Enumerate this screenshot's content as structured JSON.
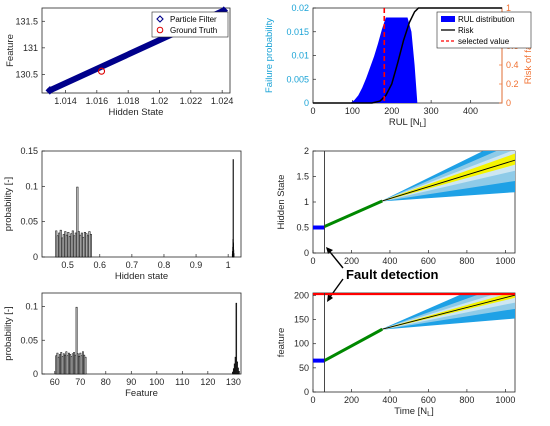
{
  "annotation": "Fault detection",
  "chart_data": [
    {
      "id": "p1",
      "type": "scatter",
      "xlabel": "Hidden State",
      "ylabel": "Feature",
      "xlim": [
        1.0125,
        1.0245
      ],
      "ylim": [
        130.15,
        131.75
      ],
      "xticks": [
        1.014,
        1.016,
        1.018,
        1.02,
        1.022,
        1.024
      ],
      "yticks": [
        130.5,
        131,
        131.5
      ],
      "xtick_labels": [
        "1.014",
        "1.016",
        "1.018",
        "1.02",
        "1.022",
        "1.024"
      ],
      "ytick_labels": [
        "130.5",
        "131",
        "131.5"
      ],
      "legend": [
        "Particle Filter",
        "Ground Truth"
      ],
      "legend_position": "top-right",
      "series": [
        {
          "name": "Particle Filter",
          "line": {
            "x": [
              1.013,
              1.0241
            ],
            "y": [
              130.2,
              131.7
            ]
          },
          "endpoints": [
            [
              1.013,
              130.2
            ],
            [
              1.0241,
              131.7
            ]
          ],
          "color": "#00008b",
          "marker": "diamond"
        },
        {
          "name": "Ground Truth",
          "points": [
            [
              1.0163,
              130.56
            ]
          ],
          "color": "#dd0000",
          "marker": "circle"
        }
      ]
    },
    {
      "id": "p2",
      "type": "area",
      "xlabel": "RUL [N",
      "xlabel_sub": "L",
      "xlabel_end": "]",
      "ylabel": "Failure probability",
      "ylabel_right": "Risk of failure",
      "xlim": [
        0,
        480
      ],
      "ylim": [
        0,
        0.02
      ],
      "ylim_right": [
        0,
        1
      ],
      "xticks": [
        0,
        100,
        200,
        300,
        400
      ],
      "xtick_labels": [
        "0",
        "100",
        "200",
        "300",
        "400"
      ],
      "yticks": [
        0,
        0.005,
        0.01,
        0.015,
        0.02
      ],
      "ytick_labels": [
        "0",
        "0.005",
        "0.01",
        "0.015",
        "0.02"
      ],
      "yticks_right": [
        0,
        0.2,
        0.4,
        0.6,
        0.8,
        1
      ],
      "ytick_labels_right": [
        "0",
        "0.2",
        "0.4",
        "0.6",
        "0.8",
        "1"
      ],
      "legend": [
        "RUL distribution",
        "Risk",
        "selected value"
      ],
      "legend_position": "top-right",
      "distribution": {
        "x": [
          95,
          105,
          115,
          125,
          135,
          145,
          155,
          165,
          175,
          185,
          200,
          220,
          240,
          250,
          258,
          265
        ],
        "y": [
          0,
          0.0006,
          0.0016,
          0.0032,
          0.0052,
          0.0075,
          0.0098,
          0.0125,
          0.0155,
          0.018,
          0.018,
          0.018,
          0.018,
          0.015,
          0.008,
          0
        ]
      },
      "risk": {
        "x": [
          0,
          150,
          170,
          185,
          200,
          215,
          230,
          245,
          258,
          268,
          480
        ],
        "y": [
          0,
          0,
          0.02,
          0.08,
          0.2,
          0.42,
          0.66,
          0.85,
          0.96,
          1,
          1
        ]
      },
      "selected_value": 181,
      "colors": {
        "distribution": "#0000ff",
        "risk": "#000000",
        "selected": "#ff0000",
        "axis_left": "#1aa3d6",
        "axis_right": "#f07030"
      }
    },
    {
      "id": "p3",
      "type": "bar",
      "xlabel": "Hidden state",
      "ylabel": "probability [-]",
      "xlim": [
        0.42,
        1.04
      ],
      "ylim": [
        0,
        0.15
      ],
      "xticks": [
        0.5,
        0.6,
        0.7,
        0.8,
        0.9,
        1
      ],
      "xtick_labels": [
        "0.5",
        "0.6",
        "0.7",
        "0.8",
        "0.9",
        "1"
      ],
      "yticks": [
        0,
        0.05,
        0.1,
        0.15
      ],
      "ytick_labels": [
        "0",
        "0.05",
        "0.1",
        "0.15"
      ],
      "bars_a": {
        "start": 0.462,
        "step": 0.0047,
        "values": [
          0.037,
          0.03,
          0.034,
          0.038,
          0.027,
          0.032,
          0.036,
          0.031,
          0.035,
          0.029,
          0.033,
          0.037,
          0.03,
          0.034,
          0.099,
          0.036,
          0.031,
          0.034,
          0.028,
          0.035,
          0.033,
          0.03,
          0.036,
          0.032
        ]
      },
      "bars_b": {
        "start": 1.0125,
        "step": 0.0006,
        "values": [
          0.004,
          0.008,
          0.014,
          0.025,
          0.138,
          0.02,
          0.01,
          0.005
        ]
      }
    },
    {
      "id": "p4",
      "type": "line",
      "xlabel": "",
      "ylabel": "Hidden State",
      "xlim": [
        0,
        1050
      ],
      "ylim": [
        0,
        2
      ],
      "xticks": [
        0,
        200,
        400,
        600,
        800,
        1000
      ],
      "xtick_labels": [
        "0",
        "200",
        "400",
        "600",
        "800",
        "1000"
      ],
      "yticks": [
        0,
        0.5,
        1,
        1.5,
        2
      ],
      "ytick_labels": [
        "0",
        "0.5",
        "1",
        "1.5",
        "2"
      ],
      "detection_time": 60,
      "early": {
        "x": [
          0,
          60
        ],
        "y": [
          0.5,
          0.5
        ]
      },
      "known": {
        "x": [
          60,
          360
        ],
        "y": [
          0.52,
          1.02
        ]
      },
      "bands": [
        {
          "x": [
            360,
            1050
          ],
          "low": [
            1.02,
            1.2
          ],
          "high": [
            1.02,
            2.3
          ],
          "color": "#1ea1e6"
        },
        {
          "x": [
            360,
            1050
          ],
          "low": [
            1.02,
            1.42
          ],
          "high": [
            1.02,
            2.15
          ],
          "color": "#8fcbe8"
        },
        {
          "x": [
            360,
            1050
          ],
          "low": [
            1.02,
            1.62
          ],
          "high": [
            1.02,
            2.02
          ],
          "color": "#cde6f2"
        },
        {
          "x": [
            360,
            1050
          ],
          "low": [
            1.02,
            1.74
          ],
          "high": [
            1.02,
            1.94
          ],
          "color": "#f4f400"
        }
      ],
      "colors": {
        "early": "#0000ff",
        "known": "#008800",
        "mean": "#000000"
      }
    },
    {
      "id": "p5",
      "type": "bar",
      "xlabel": "Feature",
      "ylabel": "probability [-]",
      "xlim": [
        55,
        133
      ],
      "ylim": [
        0,
        0.12
      ],
      "xticks": [
        60,
        70,
        80,
        90,
        100,
        110,
        120,
        130
      ],
      "xtick_labels": [
        "60",
        "70",
        "80",
        "90",
        "100",
        "110",
        "120",
        "130"
      ],
      "yticks": [
        0,
        0.05,
        0.1
      ],
      "ytick_labels": [
        "0",
        "0.05",
        "0.1"
      ],
      "bars_a": {
        "start": 60.3,
        "step": 0.5,
        "values": [
          0.027,
          0.031,
          0.025,
          0.029,
          0.032,
          0.026,
          0.03,
          0.028,
          0.033,
          0.027,
          0.031,
          0.029,
          0.026,
          0.03,
          0.032,
          0.028,
          0.099,
          0.03,
          0.026,
          0.031,
          0.027,
          0.033,
          0.028,
          0.025
        ]
      },
      "bars_b": {
        "start": 129.6,
        "step": 0.35,
        "values": [
          0.003,
          0.008,
          0.015,
          0.025,
          0.105,
          0.018,
          0.009,
          0.004
        ]
      }
    },
    {
      "id": "p6",
      "type": "line",
      "xlabel": "Time [N",
      "xlabel_sub": "L",
      "xlabel_end": "]",
      "ylabel": "feature",
      "xlim": [
        0,
        1050
      ],
      "ylim": [
        0,
        205
      ],
      "xticks": [
        0,
        200,
        400,
        600,
        800,
        1000
      ],
      "xtick_labels": [
        "0",
        "200",
        "400",
        "600",
        "800",
        "1000"
      ],
      "yticks": [
        0,
        50,
        100,
        150,
        200
      ],
      "ytick_labels": [
        "0",
        "50",
        "100",
        "150",
        "200"
      ],
      "threshold": 203,
      "detection_time": 60,
      "early": {
        "x": [
          0,
          60
        ],
        "y": [
          65,
          65
        ]
      },
      "known": {
        "x": [
          60,
          360
        ],
        "y": [
          65,
          130
        ]
      },
      "bands": [
        {
          "x": [
            360,
            1050
          ],
          "low": [
            130,
            153
          ],
          "high": [
            130,
            250
          ],
          "color": "#1ea1e6"
        },
        {
          "x": [
            360,
            1050
          ],
          "low": [
            130,
            173
          ],
          "high": [
            130,
            228
          ],
          "color": "#8fcbe8"
        },
        {
          "x": [
            360,
            1050
          ],
          "low": [
            130,
            186
          ],
          "high": [
            130,
            215
          ],
          "color": "#cde6f2"
        },
        {
          "x": [
            360,
            1050
          ],
          "low": [
            130,
            196
          ],
          "high": [
            130,
            207
          ],
          "color": "#f4f400"
        }
      ],
      "colors": {
        "early": "#0000ff",
        "known": "#008800",
        "mean": "#000000",
        "threshold": "#ff0000"
      }
    }
  ]
}
